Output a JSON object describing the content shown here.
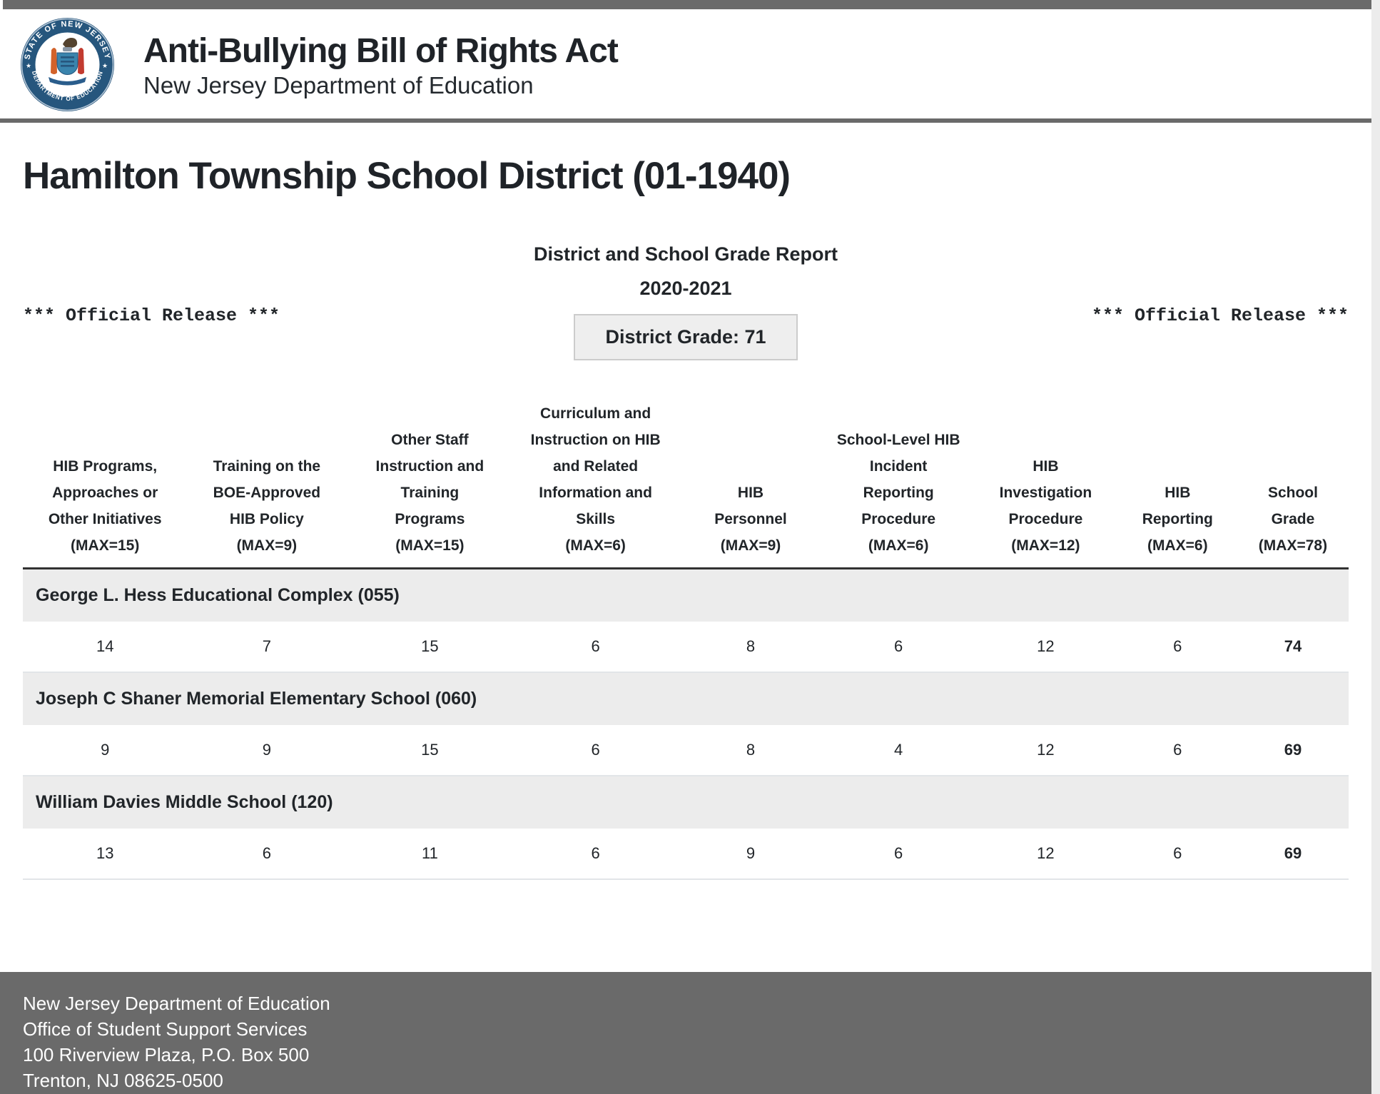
{
  "header": {
    "title": "Anti-Bullying Bill of Rights Act",
    "subtitle": "New Jersey Department of Education",
    "seal": {
      "ring_text_top": "STATE OF NEW JERSEY",
      "ring_text_bottom": "DEPARTMENT OF EDUCATION"
    }
  },
  "page": {
    "title": "Hamilton Township School District (01-1940)"
  },
  "report": {
    "title": "District and School Grade Report",
    "year": "2020-2021",
    "official_release_left": "*** Official Release ***",
    "official_release_right": "*** Official Release ***",
    "district_grade": "District Grade: 71"
  },
  "table": {
    "columns": [
      "HIB Programs,\nApproaches or\nOther Initiatives\n(MAX=15)",
      "Training on the\nBOE-Approved\nHIB Policy\n(MAX=9)",
      "Other Staff\nInstruction and\nTraining\nPrograms\n(MAX=15)",
      "Curriculum and\nInstruction on HIB\nand Related\nInformation and\nSkills\n(MAX=6)",
      "HIB\nPersonnel\n(MAX=9)",
      "School-Level HIB\nIncident\nReporting\nProcedure\n(MAX=6)",
      "HIB\nInvestigation\nProcedure\n(MAX=12)",
      "HIB\nReporting\n(MAX=6)",
      "School\nGrade\n(MAX=78)"
    ],
    "schools": [
      {
        "name": "George L. Hess Educational Complex (055)",
        "scores": [
          14,
          7,
          15,
          6,
          8,
          6,
          12,
          6
        ],
        "school_grade": 74
      },
      {
        "name": "Joseph C Shaner Memorial Elementary School (060)",
        "scores": [
          9,
          9,
          15,
          6,
          8,
          4,
          12,
          6
        ],
        "school_grade": 69
      },
      {
        "name": "William Davies Middle School (120)",
        "scores": [
          13,
          6,
          11,
          6,
          9,
          6,
          12,
          6
        ],
        "school_grade": 69
      }
    ]
  },
  "footer": {
    "lines": [
      "New Jersey Department of Education",
      "Office of Student Support Services",
      "100 Riverview Plaza, P.O. Box 500",
      "Trenton, NJ 08625-0500"
    ]
  },
  "colors": {
    "bar_gray": "#6a6a6a",
    "band_gray": "#ececec",
    "text_dark": "#212529",
    "seal_blue": "#26567d",
    "grade_box_bg": "#eeeeee",
    "grade_box_border": "#cccccc"
  }
}
